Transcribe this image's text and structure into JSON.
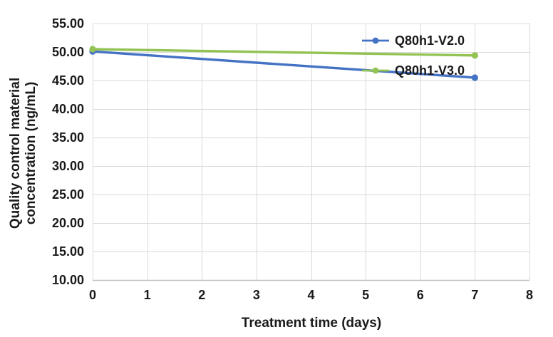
{
  "chart_data": {
    "type": "line",
    "x": [
      0,
      7
    ],
    "series": [
      {
        "name": "Q80h1-V2.0",
        "color": "#4472C4",
        "values": [
          50.1,
          45.5
        ]
      },
      {
        "name": "Q80h1-V3.0",
        "color": "#92C353",
        "values": [
          50.5,
          49.4
        ]
      }
    ],
    "title": "",
    "xlabel": "Treatment time (days)",
    "ylabel": "Quality control material concentration (ng/mL)",
    "ylabel_lines": [
      "Quality control material",
      "concentration (ng/mL)"
    ],
    "xlim": [
      0,
      8
    ],
    "ylim": [
      10,
      55
    ],
    "x_step": 1,
    "y_step": 5,
    "x_ticks": [
      "0",
      "1",
      "2",
      "3",
      "4",
      "5",
      "6",
      "7",
      "8"
    ],
    "y_ticks": [
      "55.00",
      "50.00",
      "45.00",
      "40.00",
      "35.00",
      "30.00",
      "25.00",
      "20.00",
      "15.00",
      "10.00"
    ],
    "grid": "both",
    "legend_position": "inside-top-right",
    "colors": {
      "gridline": "#D9D9D9",
      "axis_line": "#BFBFBF",
      "text": "#1a1a1a"
    }
  }
}
